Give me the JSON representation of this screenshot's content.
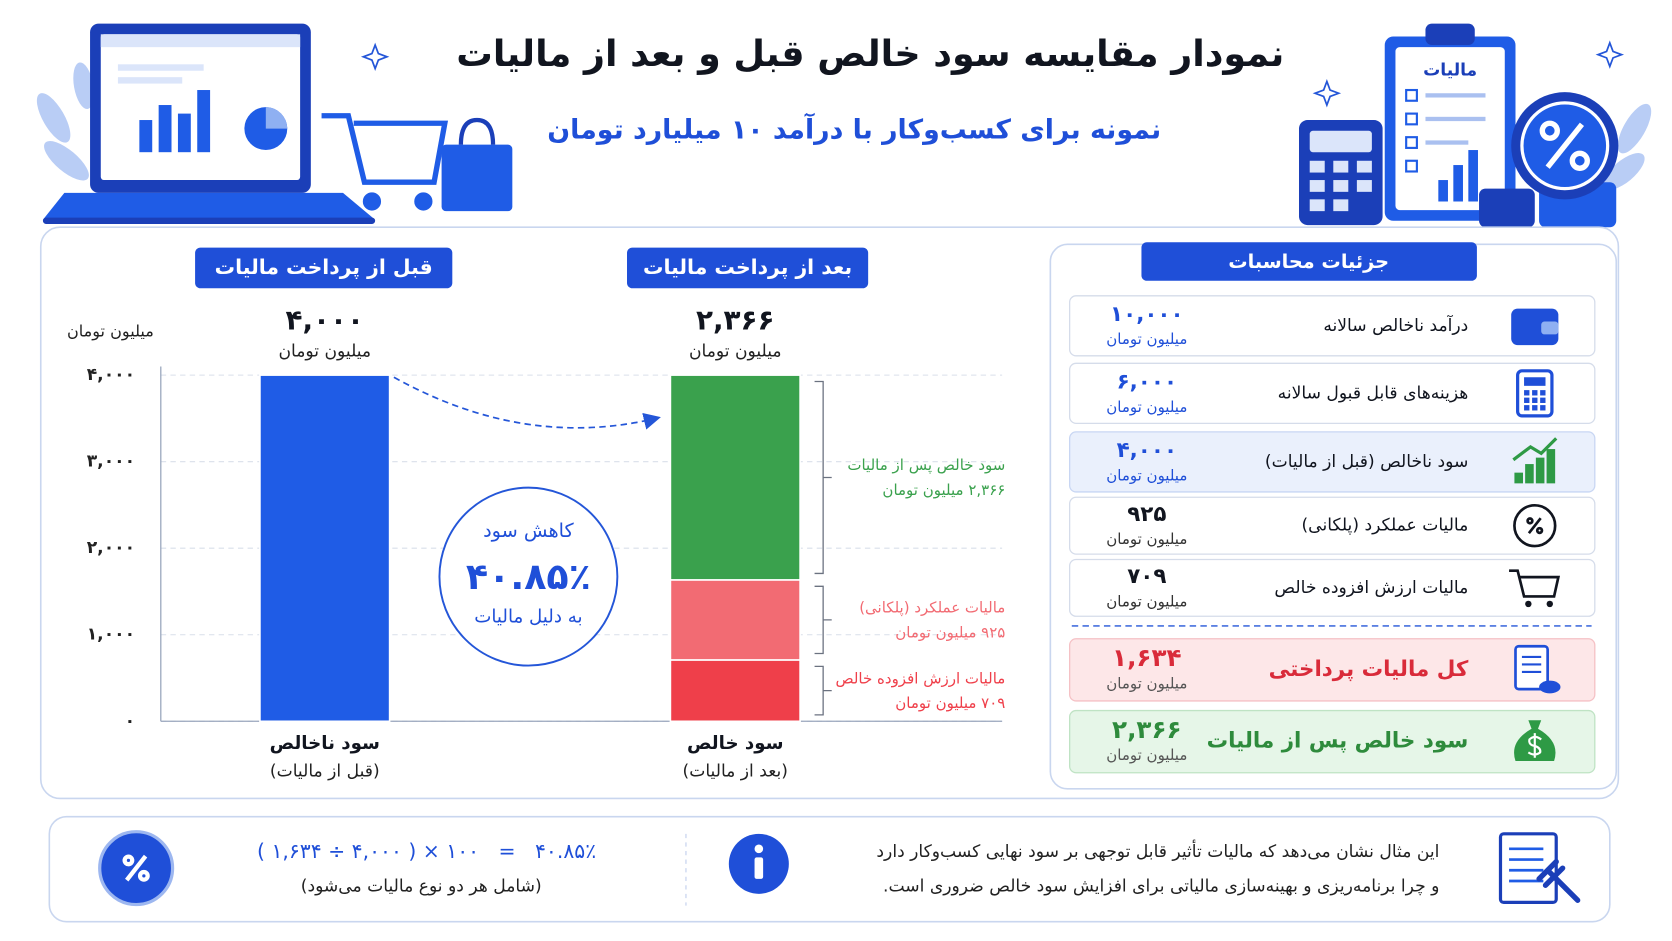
{
  "header": {
    "title": "نمودار مقایسه سود خالص قبل و بعد از مالیات",
    "subtitle": "نمونه برای کسب‌وکار با درآمد ۱۰ میلیارد تومان",
    "clipboard_label": "مالیات"
  },
  "chart_data": {
    "type": "stacked_bar",
    "panel_labels": [
      "قبل از پرداخت مالیات",
      "بعد از پرداخت مالیات"
    ],
    "y_axis_label": "میلیون تومان",
    "categories": [
      "سود ناخالص",
      "سود خالص"
    ],
    "category_notes": [
      "(قبل از مالیات)",
      "(بعد از مالیات)"
    ],
    "top_labels": [
      "۴,۰۰۰",
      "۲,۳۶۶"
    ],
    "top_unit": "میلیون تومان",
    "ylim": [
      0,
      4000
    ],
    "yticks": [
      {
        "value": 0,
        "label": "۰"
      },
      {
        "value": 1000,
        "label": "۱,۰۰۰"
      },
      {
        "value": 2000,
        "label": "۲,۰۰۰"
      },
      {
        "value": 3000,
        "label": "۳,۰۰۰"
      },
      {
        "value": 4000,
        "label": "۴,۰۰۰"
      }
    ],
    "grid": true,
    "series": [
      {
        "color": "#1f5ce6",
        "values": [
          4000,
          null
        ]
      },
      {
        "name": "مالیات ارزش افزوده خالص",
        "color": "#ef3f4a",
        "values": [
          null,
          709
        ],
        "value_labels": [
          null,
          "۷۰۹ میلیون تومان"
        ]
      },
      {
        "name": "مالیات عملکرد (پلکانی)",
        "color": "#f26b73",
        "values": [
          null,
          925
        ],
        "value_labels": [
          null,
          "۹۲۵ میلیون تومان"
        ]
      },
      {
        "name": "سود خالص پس از مالیات",
        "color": "#3aa14d",
        "values": [
          null,
          2366
        ],
        "value_labels": [
          null,
          "۲,۳۶۶ میلیون تومان"
        ]
      }
    ],
    "callout": {
      "title": "کاهش سود",
      "value": "۴۰.۸۵٪",
      "note": "به دلیل مالیات"
    }
  },
  "details": {
    "title": "جزئیات محاسبات",
    "rows": [
      {
        "label": "درآمد ناخالص سالانه",
        "value": "۱۰,۰۰۰",
        "unit": "میلیون تومان"
      },
      {
        "label": "هزینه‌های قابل قبول سالانه",
        "value": "۶,۰۰۰",
        "unit": "میلیون تومان"
      },
      {
        "label": "سود ناخالص (قبل از مالیات)",
        "value": "۴,۰۰۰",
        "unit": "میلیون تومان"
      },
      {
        "label": "مالیات عملکرد (پلکانی)",
        "value": "۹۲۵",
        "unit": "میلیون تومان"
      },
      {
        "label": "مالیات ارزش افزوده خالص",
        "value": "۷۰۹",
        "unit": "میلیون تومان"
      },
      {
        "label": "کل مالیات پرداختی",
        "value": "۱,۶۳۴",
        "unit": "میلیون تومان"
      },
      {
        "label": "سود خالص پس از مالیات",
        "value": "۲,۳۶۶",
        "unit": "میلیون تومان"
      }
    ]
  },
  "footer": {
    "formula": "( ۱,۶۳۴ ÷ ۴,۰۰۰ ) × ۱۰۰   =   ۴۰.۸۵٪",
    "formula_note": "(شامل هر دو نوع مالیات می‌شود)",
    "note_lines": [
      "این مثال نشان می‌دهد که مالیات تأثیر قابل توجهی بر سود نهایی کسب‌وکار دارد",
      "و چرا برنامه‌ریزی و بهینه‌سازی مالیاتی برای افزایش سود خالص ضروری است."
    ]
  }
}
